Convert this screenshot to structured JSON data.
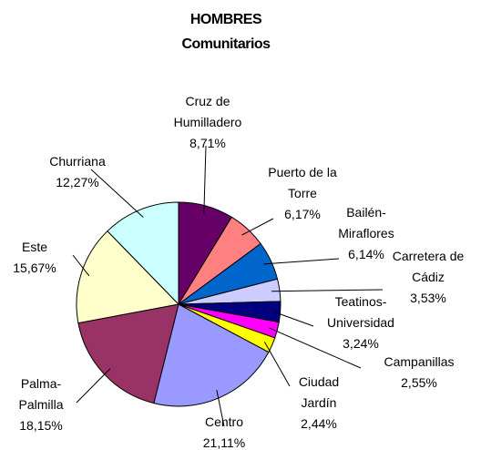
{
  "chart_data": {
    "type": "pie",
    "title": "HOMBRES",
    "subtitle": "Comunitarios",
    "categories": [
      [
        "Cruz de",
        "Humilladero"
      ],
      [
        "Puerto de la",
        "Torre"
      ],
      [
        "Bailén-",
        "Miraflores"
      ],
      [
        "Carretera de",
        "Cádiz"
      ],
      [
        "Teatinos-",
        "Universidad"
      ],
      [
        "Campanillas"
      ],
      [
        "Ciudad",
        "Jardín"
      ],
      [
        "Centro"
      ],
      [
        "Palma-",
        "Palmilla"
      ],
      [
        "Este"
      ],
      [
        "Churriana"
      ]
    ],
    "values": [
      8.71,
      6.17,
      6.14,
      3.53,
      3.24,
      2.55,
      2.44,
      21.11,
      18.15,
      15.67,
      12.27
    ],
    "value_labels": [
      "8,71%",
      "6,17%",
      "6,14%",
      "3,53%",
      "3,24%",
      "2,55%",
      "2,44%",
      "21,11%",
      "18,15%",
      "15,67%",
      "12,27%"
    ],
    "colors": [
      "#660066",
      "#ff8080",
      "#0066cc",
      "#ccccff",
      "#000080",
      "#ff00ff",
      "#ffff00",
      "#9999ff",
      "#993366",
      "#ffffcc",
      "#ccffff"
    ]
  }
}
